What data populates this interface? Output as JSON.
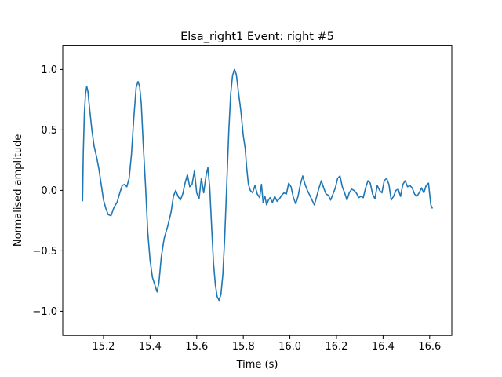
{
  "chart_data": {
    "type": "line",
    "title": "Elsa_right1 Event: right #5",
    "xlabel": "Time (s)",
    "ylabel": "Normalised amplitude",
    "xlim": [
      15.025,
      16.695
    ],
    "ylim": [
      -1.2,
      1.2
    ],
    "xticks": [
      15.2,
      15.4,
      15.6,
      15.8,
      16.0,
      16.2,
      16.4,
      16.6
    ],
    "xtick_labels": [
      "15.2",
      "15.4",
      "15.6",
      "15.8",
      "16.0",
      "16.2",
      "16.4",
      "16.6"
    ],
    "yticks": [
      -1.0,
      -0.5,
      0.0,
      0.5,
      1.0
    ],
    "ytick_labels": [
      "−1.0",
      "−0.5",
      "0.0",
      "0.5",
      "1.0"
    ],
    "grid": false,
    "line_color": "#1f77b4",
    "series": [
      {
        "x": [
          15.11,
          15.113,
          15.118,
          15.123,
          15.128,
          15.133,
          15.14,
          15.15,
          15.16,
          15.17,
          15.18,
          15.19,
          15.2,
          15.21,
          15.22,
          15.232,
          15.245,
          15.258,
          15.27,
          15.28,
          15.29,
          15.3,
          15.31,
          15.32,
          15.33,
          15.34,
          15.348,
          15.355,
          15.362,
          15.37,
          15.38,
          15.39,
          15.4,
          15.41,
          15.42,
          15.43,
          15.438,
          15.448,
          15.46,
          15.475,
          15.49,
          15.5,
          15.51,
          15.52,
          15.53,
          15.54,
          15.55,
          15.56,
          15.57,
          15.58,
          15.59,
          15.6,
          15.61,
          15.62,
          15.63,
          15.64,
          15.648,
          15.656,
          15.664,
          15.672,
          15.68,
          15.688,
          15.696,
          15.704,
          15.712,
          15.72,
          15.73,
          15.738,
          15.746,
          15.754,
          15.762,
          15.77,
          15.78,
          15.79,
          15.8,
          15.808,
          15.815,
          15.822,
          15.83,
          15.84,
          15.85,
          15.86,
          15.87,
          15.878,
          15.885,
          15.893,
          15.9,
          15.908,
          15.915,
          15.925,
          15.935,
          15.945,
          15.955,
          15.965,
          15.975,
          15.985,
          15.995,
          16.005,
          16.015,
          16.025,
          16.035,
          16.045,
          16.055,
          16.065,
          16.075,
          16.085,
          16.095,
          16.105,
          16.115,
          16.125,
          16.135,
          16.145,
          16.155,
          16.165,
          16.175,
          16.185,
          16.195,
          16.205,
          16.215,
          16.225,
          16.235,
          16.245,
          16.255,
          16.265,
          16.275,
          16.285,
          16.295,
          16.305,
          16.315,
          16.325,
          16.335,
          16.345,
          16.355,
          16.365,
          16.375,
          16.385,
          16.395,
          16.405,
          16.415,
          16.425,
          16.435,
          16.445,
          16.455,
          16.465,
          16.475,
          16.485,
          16.495,
          16.505,
          16.515,
          16.525,
          16.535,
          16.545,
          16.555,
          16.565,
          16.575,
          16.585,
          16.595,
          16.605,
          16.612
        ],
        "y": [
          -0.09,
          0.3,
          0.65,
          0.8,
          0.86,
          0.82,
          0.68,
          0.5,
          0.36,
          0.28,
          0.18,
          0.05,
          -0.08,
          -0.15,
          -0.2,
          -0.21,
          -0.14,
          -0.1,
          -0.02,
          0.04,
          0.05,
          0.03,
          0.1,
          0.3,
          0.6,
          0.85,
          0.9,
          0.86,
          0.72,
          0.4,
          0.05,
          -0.35,
          -0.58,
          -0.72,
          -0.78,
          -0.84,
          -0.76,
          -0.55,
          -0.4,
          -0.3,
          -0.18,
          -0.05,
          0.0,
          -0.05,
          -0.08,
          -0.03,
          0.06,
          0.13,
          0.03,
          0.05,
          0.16,
          -0.02,
          -0.07,
          0.1,
          -0.02,
          0.12,
          0.19,
          0.02,
          -0.3,
          -0.6,
          -0.78,
          -0.88,
          -0.91,
          -0.86,
          -0.7,
          -0.4,
          0.1,
          0.5,
          0.8,
          0.95,
          1.0,
          0.96,
          0.8,
          0.65,
          0.45,
          0.35,
          0.18,
          0.05,
          0.0,
          -0.02,
          0.04,
          -0.03,
          -0.06,
          0.05,
          -0.1,
          -0.05,
          -0.12,
          -0.08,
          -0.06,
          -0.1,
          -0.05,
          -0.09,
          -0.07,
          -0.04,
          -0.02,
          -0.03,
          0.06,
          0.03,
          -0.06,
          -0.11,
          -0.05,
          0.05,
          0.12,
          0.05,
          0.0,
          -0.04,
          -0.08,
          -0.12,
          -0.05,
          0.02,
          0.08,
          0.02,
          -0.03,
          -0.04,
          -0.08,
          -0.03,
          0.02,
          0.1,
          0.12,
          0.03,
          -0.02,
          -0.08,
          -0.02,
          0.01,
          0.0,
          -0.02,
          -0.06,
          -0.05,
          -0.06,
          0.02,
          0.08,
          0.06,
          -0.03,
          -0.07,
          0.04,
          0.0,
          -0.02,
          0.08,
          0.1,
          0.05,
          -0.08,
          -0.05,
          0.0,
          0.01,
          -0.05,
          0.05,
          0.08,
          0.03,
          0.04,
          0.02,
          -0.03,
          -0.05,
          -0.02,
          0.02,
          -0.02,
          0.04,
          0.06,
          -0.12,
          -0.15
        ]
      }
    ]
  }
}
